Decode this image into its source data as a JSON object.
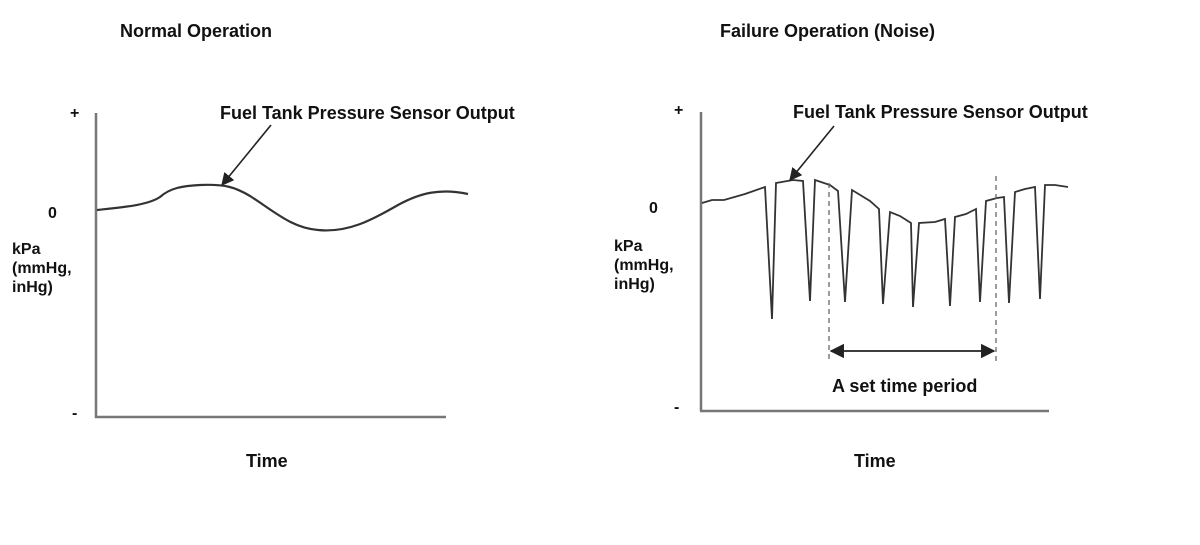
{
  "left_panel": {
    "title": "Normal Operation",
    "callout": "Fuel Tank Pressure Sensor Output",
    "y_plus": "+",
    "y_zero": "0",
    "y_minus": "-",
    "y_unit": "kPa\n(mmHg,\ninHg)",
    "x_label": "Time"
  },
  "right_panel": {
    "title": "Failure Operation (Noise)",
    "callout": "Fuel Tank Pressure Sensor Output",
    "y_plus": "+",
    "y_zero": "0",
    "y_minus": "-",
    "y_unit": "kPa\n(mmHg,\ninHg)",
    "x_label": "Time",
    "period_label": "A set time period"
  },
  "colors": {
    "line": "#333333",
    "text": "#111111",
    "background": "#ffffff"
  }
}
